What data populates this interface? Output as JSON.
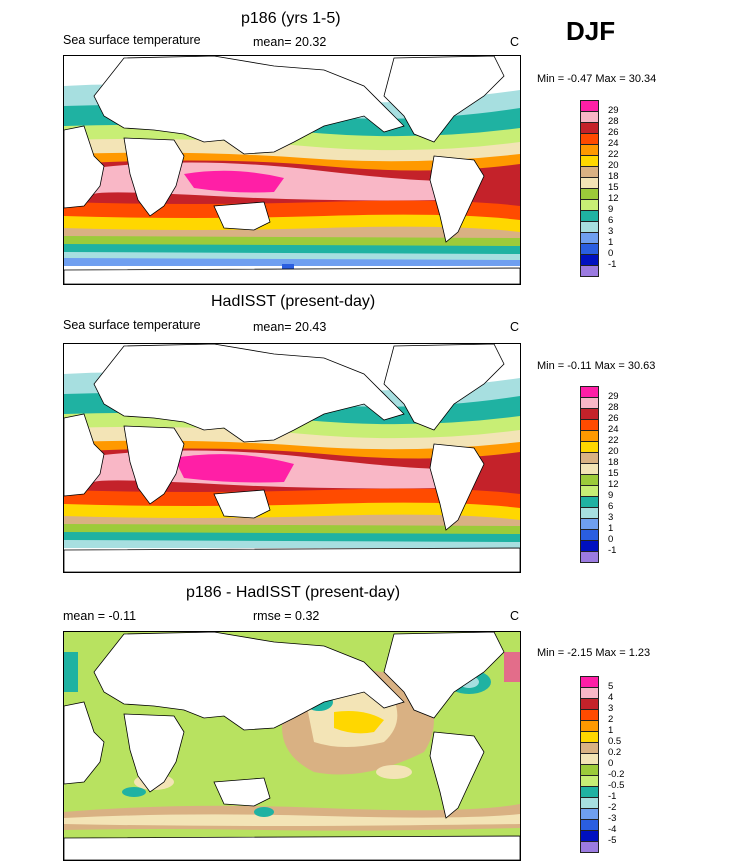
{
  "season": "DJF",
  "panels": [
    {
      "title": "p186 (yrs 1-5)",
      "left_label": "Sea surface temperature",
      "mid_label": "mean=  20.32",
      "unit": "C",
      "minmax": "Min =  -0.47 Max =  30.34",
      "levels": [
        "29",
        "28",
        "26",
        "24",
        "22",
        "20",
        "18",
        "15",
        "12",
        "9",
        "6",
        "3",
        "1",
        "0",
        "-1"
      ],
      "colors": [
        "#ff1fa6",
        "#f9b7c6",
        "#c4222a",
        "#ff4b00",
        "#ff9900",
        "#ffd700",
        "#d9b183",
        "#f3e4b6",
        "#9ccb3a",
        "#c8ee75",
        "#1fb2a2",
        "#a7dfe0",
        "#6f9ff0",
        "#2a5ee0",
        "#0010c0",
        "#9b7be0"
      ]
    },
    {
      "title": "HadISST (present-day)",
      "left_label": "Sea surface temperature",
      "mid_label": "mean=  20.43",
      "unit": "C",
      "minmax": "Min =  -0.11 Max =  30.63",
      "levels": [
        "29",
        "28",
        "26",
        "24",
        "22",
        "20",
        "18",
        "15",
        "12",
        "9",
        "6",
        "3",
        "1",
        "0",
        "-1"
      ],
      "colors": [
        "#ff1fa6",
        "#f9b7c6",
        "#c4222a",
        "#ff4b00",
        "#ff9900",
        "#ffd700",
        "#d9b183",
        "#f3e4b6",
        "#9ccb3a",
        "#c8ee75",
        "#1fb2a2",
        "#a7dfe0",
        "#6f9ff0",
        "#2a5ee0",
        "#0010c0",
        "#9b7be0"
      ]
    },
    {
      "title": "p186 - HadISST (present-day)",
      "left_label": "mean =  -0.11",
      "mid_label": "rmse =   0.32",
      "unit": "C",
      "minmax": "Min =  -2.15 Max =   1.23",
      "levels": [
        "5",
        "4",
        "3",
        "2",
        "1",
        "0.5",
        "0.2",
        "0",
        "-0.2",
        "-0.5",
        "-1",
        "-2",
        "-3",
        "-4",
        "-5"
      ],
      "colors": [
        "#ff1fa6",
        "#f9b7c6",
        "#c4222a",
        "#ff4b00",
        "#ff9900",
        "#ffd700",
        "#d9b183",
        "#f3e4b6",
        "#9ccb3a",
        "#c8ee75",
        "#1fb2a2",
        "#a7dfe0",
        "#6f9ff0",
        "#2a5ee0",
        "#0010c0",
        "#9b7be0"
      ]
    }
  ],
  "chart_data": [
    {
      "type": "heatmap",
      "title": "p186 (yrs 1-5)",
      "variable": "Sea surface temperature",
      "units": "C",
      "mean": 20.32,
      "min": -0.47,
      "max": 30.34,
      "contour_levels": [
        -1,
        0,
        1,
        3,
        6,
        9,
        12,
        15,
        18,
        20,
        22,
        24,
        26,
        28,
        29
      ]
    },
    {
      "type": "heatmap",
      "title": "HadISST (present-day)",
      "variable": "Sea surface temperature",
      "units": "C",
      "mean": 20.43,
      "min": -0.11,
      "max": 30.63,
      "contour_levels": [
        -1,
        0,
        1,
        3,
        6,
        9,
        12,
        15,
        18,
        20,
        22,
        24,
        26,
        28,
        29
      ]
    },
    {
      "type": "heatmap",
      "title": "p186 - HadISST (present-day)",
      "units": "C",
      "mean": -0.11,
      "rmse": 0.32,
      "min": -2.15,
      "max": 1.23,
      "contour_levels": [
        -5,
        -4,
        -3,
        -2,
        -1,
        -0.5,
        -0.2,
        0,
        0.2,
        0.5,
        1,
        2,
        3,
        4,
        5
      ]
    }
  ]
}
